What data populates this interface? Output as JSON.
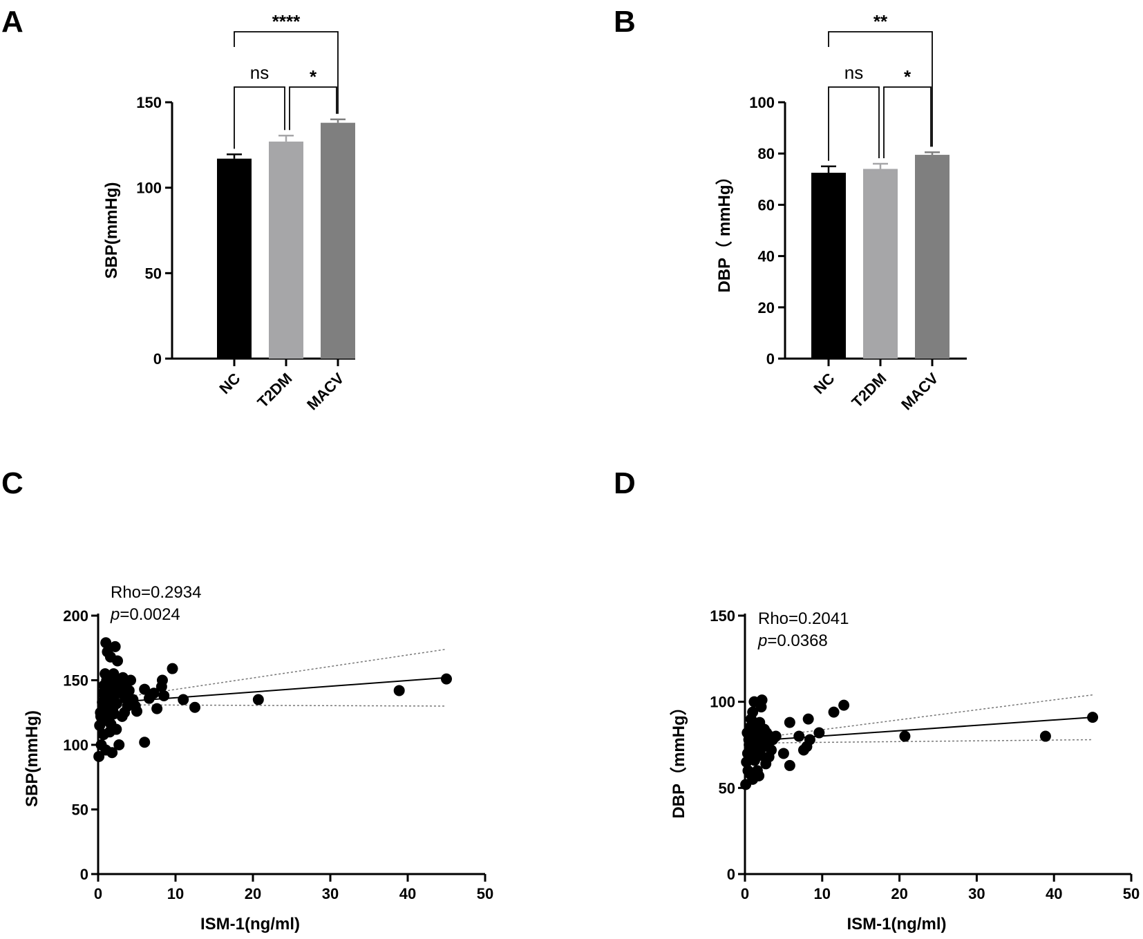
{
  "panels": {
    "a": "A",
    "b": "B",
    "c": "C",
    "d": "D"
  },
  "chart_data": [
    {
      "id": "A",
      "type": "bar",
      "categories": [
        "NC",
        "T2DM",
        "MACV"
      ],
      "values": [
        117,
        127,
        138
      ],
      "errors": [
        2.5,
        3.5,
        2
      ],
      "colors": [
        "#000000",
        "#a6a6a8",
        "#7f7f7f"
      ],
      "ylabel": "SBP(mmHg)",
      "ylim": [
        0,
        150
      ],
      "yticks": [
        0,
        50,
        100,
        150
      ],
      "comparisons": [
        {
          "from": 0,
          "to": 1,
          "label": "ns"
        },
        {
          "from": 1,
          "to": 2,
          "label": "*"
        },
        {
          "from": 0,
          "to": 2,
          "label": "****"
        }
      ]
    },
    {
      "id": "B",
      "type": "bar",
      "categories": [
        "NC",
        "T2DM",
        "MACV"
      ],
      "values": [
        72.5,
        74,
        79.5
      ],
      "errors": [
        2.5,
        2,
        1
      ],
      "colors": [
        "#000000",
        "#a6a6a8",
        "#7f7f7f"
      ],
      "ylabel": "DBP（ mmHg）",
      "ylim": [
        0,
        100
      ],
      "yticks": [
        0,
        20,
        40,
        60,
        80,
        100
      ],
      "comparisons": [
        {
          "from": 0,
          "to": 1,
          "label": "ns"
        },
        {
          "from": 1,
          "to": 2,
          "label": "*"
        },
        {
          "from": 0,
          "to": 2,
          "label": "**"
        }
      ]
    },
    {
      "id": "C",
      "type": "scatter",
      "xlabel": "ISM-1(ng/ml)",
      "ylabel": "SBP(mmHg)",
      "xlim": [
        0,
        50
      ],
      "ylim": [
        0,
        200
      ],
      "xticks": [
        0,
        10,
        20,
        30,
        40,
        50
      ],
      "yticks": [
        0,
        50,
        100,
        150,
        200
      ],
      "rho_text": "Rho=0.2934",
      "p_label": "p",
      "p_value": "=0.0024",
      "fit": {
        "x": [
          0,
          45
        ],
        "y": [
          132,
          152
        ]
      },
      "ci_upper": {
        "x": [
          0,
          45
        ],
        "y": [
          134,
          174
        ]
      },
      "ci_lower": {
        "x": [
          0,
          45
        ],
        "y": [
          131,
          130
        ]
      },
      "points": [
        [
          1.0,
          179
        ],
        [
          1.2,
          172
        ],
        [
          2.2,
          176
        ],
        [
          1.6,
          168
        ],
        [
          2.5,
          165
        ],
        [
          9.6,
          159
        ],
        [
          0.3,
          125
        ],
        [
          0.5,
          118
        ],
        [
          0.6,
          140
        ],
        [
          0.8,
          130
        ],
        [
          0.9,
          155
        ],
        [
          1.1,
          150
        ],
        [
          1.3,
          145
        ],
        [
          1.4,
          120
        ],
        [
          1.5,
          110
        ],
        [
          1.7,
          135
        ],
        [
          1.8,
          142
        ],
        [
          1.9,
          128
        ],
        [
          2.0,
          155
        ],
        [
          2.1,
          138
        ],
        [
          2.3,
          148
        ],
        [
          2.4,
          132
        ],
        [
          2.6,
          150
        ],
        [
          2.8,
          145
        ],
        [
          3.0,
          140
        ],
        [
          3.2,
          152
        ],
        [
          3.4,
          125
        ],
        [
          3.6,
          148
        ],
        [
          3.8,
          130
        ],
        [
          4.0,
          142
        ],
        [
          4.2,
          150
        ],
        [
          4.5,
          135
        ],
        [
          0.2,
          115
        ],
        [
          0.4,
          100
        ],
        [
          0.7,
          108
        ],
        [
          1.0,
          96
        ],
        [
          1.8,
          94
        ],
        [
          2.7,
          100
        ],
        [
          0.1,
          91
        ],
        [
          0.35,
          122
        ],
        [
          0.55,
          133
        ],
        [
          0.75,
          146
        ],
        [
          1.25,
          126
        ],
        [
          1.45,
          139
        ],
        [
          1.65,
          116
        ],
        [
          2.05,
          124
        ],
        [
          2.35,
          112
        ],
        [
          3.1,
          122
        ],
        [
          3.5,
          136
        ],
        [
          4.8,
          130
        ],
        [
          5.0,
          126
        ],
        [
          6.0,
          143
        ],
        [
          6.6,
          136
        ],
        [
          7.2,
          140
        ],
        [
          7.6,
          128
        ],
        [
          8.2,
          145
        ],
        [
          8.5,
          138
        ],
        [
          8.3,
          150
        ],
        [
          6.0,
          102
        ],
        [
          11.0,
          135
        ],
        [
          12.5,
          129
        ],
        [
          20.7,
          135
        ],
        [
          38.9,
          142
        ],
        [
          45.0,
          151
        ]
      ]
    },
    {
      "id": "D",
      "type": "scatter",
      "xlabel": "ISM-1(ng/ml)",
      "ylabel": "DBP（mmHg）",
      "xlim": [
        0,
        50
      ],
      "ylim": [
        0,
        150
      ],
      "xticks": [
        0,
        10,
        20,
        30,
        40,
        50
      ],
      "yticks": [
        0,
        50,
        100,
        150
      ],
      "rho_text": "Rho=0.2041",
      "p_label": "p",
      "p_value": "=0.0368",
      "fit": {
        "x": [
          0,
          45
        ],
        "y": [
          77,
          91
        ]
      },
      "ci_upper": {
        "x": [
          0,
          45
        ],
        "y": [
          78,
          104
        ]
      },
      "ci_lower": {
        "x": [
          0,
          45
        ],
        "y": [
          76,
          78
        ]
      },
      "points": [
        [
          1.2,
          100
        ],
        [
          2.0,
          100
        ],
        [
          2.2,
          101
        ],
        [
          2.1,
          97
        ],
        [
          1.0,
          94
        ],
        [
          12.8,
          98
        ],
        [
          11.5,
          94
        ],
        [
          0.3,
          82
        ],
        [
          0.5,
          78
        ],
        [
          0.6,
          85
        ],
        [
          0.8,
          90
        ],
        [
          0.9,
          72
        ],
        [
          1.1,
          88
        ],
        [
          1.3,
          80
        ],
        [
          1.4,
          75
        ],
        [
          1.5,
          86
        ],
        [
          1.6,
          70
        ],
        [
          1.7,
          83
        ],
        [
          1.8,
          77
        ],
        [
          1.9,
          88
        ],
        [
          2.3,
          80
        ],
        [
          2.4,
          74
        ],
        [
          2.5,
          84
        ],
        [
          2.6,
          79
        ],
        [
          2.8,
          82
        ],
        [
          3.0,
          76
        ],
        [
          3.2,
          80
        ],
        [
          3.4,
          72
        ],
        [
          3.6,
          78
        ],
        [
          0.2,
          65
        ],
        [
          0.4,
          60
        ],
        [
          0.7,
          58
        ],
        [
          1.0,
          55
        ],
        [
          1.6,
          60
        ],
        [
          1.8,
          57
        ],
        [
          2.7,
          64
        ],
        [
          0.1,
          52
        ],
        [
          0.35,
          70
        ],
        [
          0.55,
          75
        ],
        [
          0.75,
          68
        ],
        [
          1.25,
          66
        ],
        [
          2.05,
          69
        ],
        [
          3.1,
          68
        ],
        [
          4.0,
          80
        ],
        [
          5.0,
          70
        ],
        [
          5.8,
          88
        ],
        [
          5.8,
          63
        ],
        [
          7.0,
          80
        ],
        [
          7.6,
          72
        ],
        [
          8.0,
          74
        ],
        [
          8.2,
          90
        ],
        [
          8.4,
          78
        ],
        [
          9.6,
          82
        ],
        [
          20.7,
          80
        ],
        [
          38.9,
          80
        ],
        [
          45.0,
          91
        ]
      ]
    }
  ]
}
